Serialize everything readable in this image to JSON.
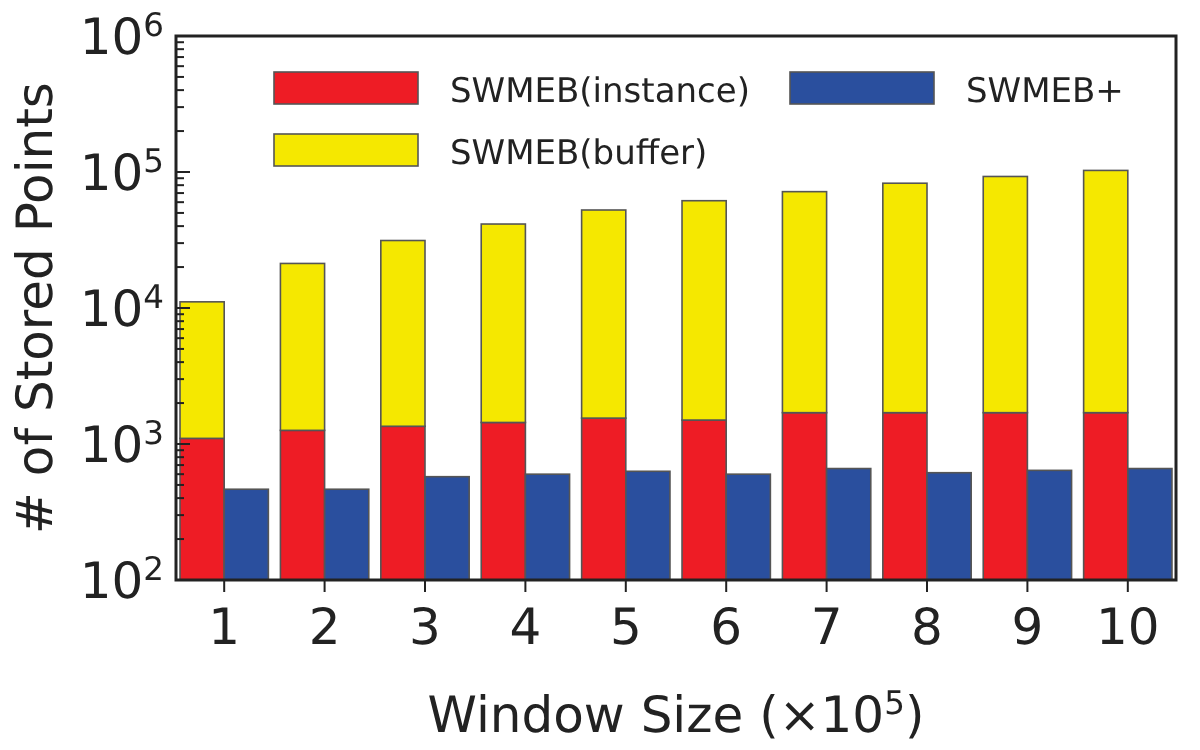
{
  "chart_data": [
    {
      "type": "bar",
      "xlabel": "Window Size (×10$^{5}$)",
      "ylabel": "# of Stored Points",
      "categories": [
        "1",
        "2",
        "3",
        "4",
        "5",
        "6",
        "7",
        "8",
        "9",
        "10"
      ],
      "series": [
        {
          "name": "SWMEB(instance)",
          "color": "#ee1c25",
          "values": [
            1100,
            1260,
            1350,
            1440,
            1550,
            1500,
            1700,
            1700,
            1700,
            1700
          ]
        },
        {
          "name": "SWMEB(buffer)",
          "color": "#f5e800",
          "values": [
            10000,
            20000,
            30000,
            40000,
            51000,
            60000,
            70000,
            81000,
            91000,
            101000
          ]
        }
      ],
      "stacked": true,
      "log": true,
      "ylim": [
        100,
        1000000
      ],
      "yticks": [
        {
          "value": 100,
          "label": "10$^{2}$"
        },
        {
          "value": 1000,
          "label": "10$^{3}$"
        },
        {
          "value": 10000,
          "label": "10$^{4}$"
        },
        {
          "value": 100000,
          "label": "10$^{5}$"
        },
        {
          "value": 1000000,
          "label": "10$^{6}$"
        }
      ],
      "legend": "top left"
    },
    {
      "type": "bar",
      "categories": [
        null,
        null,
        null,
        null,
        null,
        null,
        null,
        null,
        null,
        null
      ],
      "series": [
        {
          "name": "SWMEB+",
          "color": "#2a4f9e",
          "values": [
            465,
            465,
            575,
            600,
            630,
            600,
            660,
            615,
            640,
            660
          ]
        }
      ],
      "log": true,
      "ylim": [
        100,
        1000000
      ],
      "legend": "top right"
    }
  ]
}
